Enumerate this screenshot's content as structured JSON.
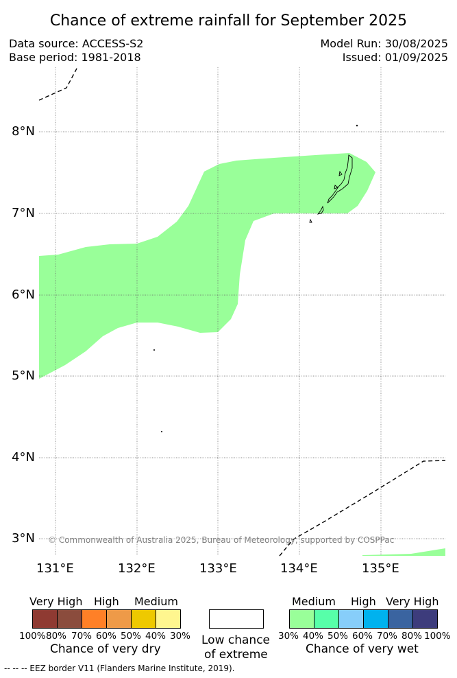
{
  "title": "Chance of extreme rainfall for September 2025",
  "header": {
    "data_source": "Data source: ACCESS-S2",
    "base_period": "Base period: 1981-2018",
    "model_run": "Model Run: 30/08/2025",
    "issued": "Issued: 01/09/2025"
  },
  "map": {
    "lat_labels": [
      "8°N",
      "7°N",
      "6°N",
      "5°N",
      "4°N",
      "3°N"
    ],
    "lon_labels": [
      "131°E",
      "132°E",
      "133°E",
      "134°E",
      "135°E"
    ],
    "wet_medium_color": "#99ff99",
    "copyright": "© Commonwealth of Australia 2025, Bureau of Meteorology, supported by COSPPac"
  },
  "legend": {
    "dry": {
      "headers": [
        "Very High",
        "High",
        "Medium"
      ],
      "colors": [
        "#8f3a32",
        "#8b4c3d",
        "#ff8027",
        "#ee9a48",
        "#eec900",
        "#fff68f"
      ],
      "percentages": [
        "100%",
        "80%",
        "70%",
        "60%",
        "50%",
        "40%",
        "30%"
      ],
      "caption": "Chance of very dry"
    },
    "low": {
      "caption_line1": "Low chance",
      "caption_line2": "of extreme"
    },
    "wet": {
      "headers": [
        "Medium",
        "High",
        "Very High"
      ],
      "colors": [
        "#99ff99",
        "#57ffa9",
        "#87cefa",
        "#00b2ee",
        "#3a64a0",
        "#3d3c7c"
      ],
      "percentages": [
        "30%",
        "40%",
        "50%",
        "60%",
        "70%",
        "80%",
        "100%"
      ],
      "caption": "Chance of very wet"
    }
  },
  "footer": {
    "eez_note": "--  --  -- EEZ border V11 (Flanders Marine Institute, 2019)."
  }
}
